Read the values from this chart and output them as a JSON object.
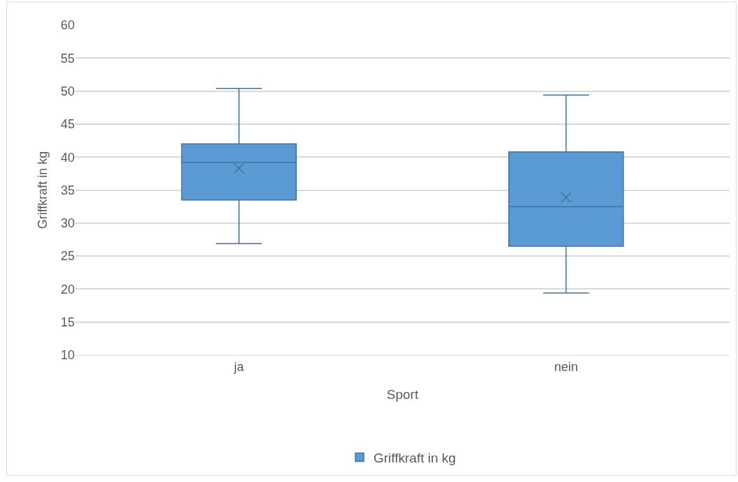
{
  "chart_data": {
    "type": "box",
    "xlabel": "Sport",
    "ylabel": "Griffkraft in kg",
    "categories": [
      "ja",
      "nein"
    ],
    "series": [
      {
        "name": "Griffkraft in kg",
        "color": "#5b9bd5",
        "boxes": [
          {
            "low": 26.9,
            "q1": 33.5,
            "median": 39.2,
            "q3": 42.0,
            "high": 50.4,
            "mean": 38.3
          },
          {
            "low": 19.4,
            "q1": 26.5,
            "median": 32.5,
            "q3": 40.8,
            "high": 49.4,
            "mean": 33.9
          }
        ]
      }
    ],
    "ylim": [
      10,
      60
    ],
    "yticks": [
      10,
      15,
      20,
      25,
      30,
      35,
      40,
      45,
      50,
      55,
      60
    ],
    "grid": "y",
    "legend": "bottom"
  }
}
